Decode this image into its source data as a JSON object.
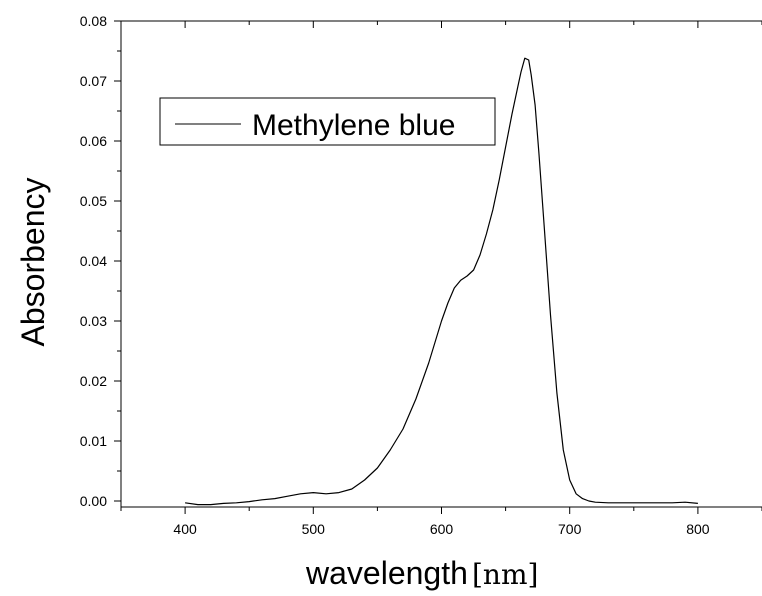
{
  "chart_data": {
    "type": "line",
    "title": "",
    "xlabel": "wavelength",
    "xunit": "[nm]",
    "ylabel": "Absorbency",
    "xlim": [
      350,
      850
    ],
    "ylim": [
      -0.001,
      0.08
    ],
    "x_ticks": [
      400,
      500,
      600,
      700,
      800
    ],
    "y_ticks": [
      0.0,
      0.01,
      0.02,
      0.03,
      0.04,
      0.05,
      0.06,
      0.07,
      0.08
    ],
    "y_tick_labels": [
      "0.00",
      "0.01",
      "0.02",
      "0.03",
      "0.04",
      "0.05",
      "0.06",
      "0.07",
      "0.08"
    ],
    "grid": false,
    "legend_position": "top-left",
    "series": [
      {
        "name": "Methylene blue",
        "color": "#000000",
        "x": [
          400,
          410,
          420,
          430,
          440,
          450,
          460,
          470,
          480,
          490,
          500,
          510,
          520,
          530,
          540,
          550,
          560,
          570,
          580,
          590,
          600,
          605,
          610,
          615,
          620,
          625,
          630,
          635,
          640,
          645,
          650,
          655,
          660,
          662,
          665,
          668,
          670,
          673,
          676,
          680,
          685,
          690,
          695,
          700,
          705,
          710,
          715,
          720,
          730,
          740,
          750,
          760,
          770,
          780,
          790,
          800
        ],
        "values": [
          -0.0003,
          -0.0006,
          -0.0006,
          -0.0004,
          -0.0003,
          -0.0001,
          0.0002,
          0.0004,
          0.0008,
          0.0012,
          0.0014,
          0.0012,
          0.0014,
          0.002,
          0.0035,
          0.0055,
          0.0085,
          0.012,
          0.017,
          0.023,
          0.03,
          0.033,
          0.0355,
          0.0368,
          0.0375,
          0.0385,
          0.041,
          0.0445,
          0.0485,
          0.0535,
          0.059,
          0.0645,
          0.0695,
          0.0715,
          0.0738,
          0.0735,
          0.071,
          0.066,
          0.058,
          0.046,
          0.031,
          0.018,
          0.0085,
          0.0035,
          0.0012,
          0.0004,
          0.0,
          -0.0002,
          -0.0003,
          -0.0003,
          -0.0003,
          -0.0003,
          -0.0003,
          -0.0003,
          -0.0002,
          -0.0004
        ]
      }
    ]
  }
}
